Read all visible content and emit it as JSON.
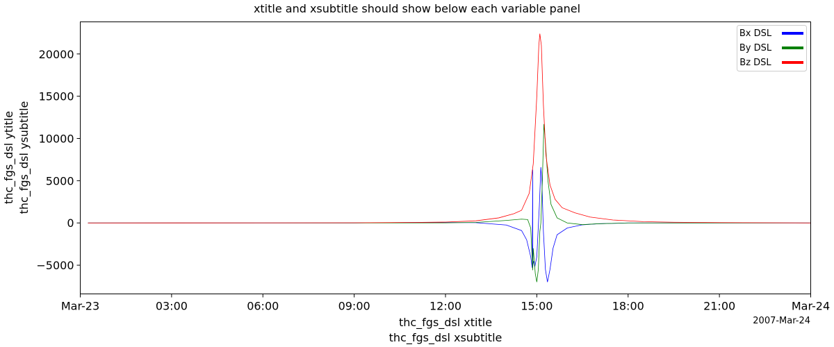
{
  "chart_data": {
    "type": "line",
    "title": "xtitle and xsubtitle should show below each variable panel",
    "xlabel": "thc_fgs_dsl xtitle",
    "xsublabel": "thc_fgs_dsl xsubtitle",
    "ylabel": "thc_fgs_dsl ytitle",
    "ysublabel": "thc_fgs_dsl ysubtitle",
    "date_label": "2007-Mar-24",
    "xlim": [
      "2007-03-23 00:00",
      "2007-03-24 00:00"
    ],
    "ylim": [
      -8400,
      23800
    ],
    "grid": false,
    "legend_position": "top-right",
    "x_ticks": [
      {
        "x": "2007-03-23 00:00",
        "label": "Mar-23"
      },
      {
        "x": "2007-03-23 03:00",
        "label": "03:00"
      },
      {
        "x": "2007-03-23 06:00",
        "label": "06:00"
      },
      {
        "x": "2007-03-23 09:00",
        "label": "09:00"
      },
      {
        "x": "2007-03-23 12:00",
        "label": "12:00"
      },
      {
        "x": "2007-03-23 15:00",
        "label": "15:00"
      },
      {
        "x": "2007-03-23 18:00",
        "label": "18:00"
      },
      {
        "x": "2007-03-23 21:00",
        "label": "21:00"
      },
      {
        "x": "2007-03-24 00:00",
        "label": "Mar-24"
      }
    ],
    "y_ticks": [
      {
        "y": -5000,
        "label": "−5000"
      },
      {
        "y": 0,
        "label": "0"
      },
      {
        "y": 5000,
        "label": "5000"
      },
      {
        "y": 10000,
        "label": "10000"
      },
      {
        "y": 15000,
        "label": "15000"
      },
      {
        "y": 20000,
        "label": "20000"
      }
    ],
    "series": [
      {
        "name": "Bx DSL",
        "color": "#0000ff",
        "points": [
          [
            "2007-03-23 00:15",
            0
          ],
          [
            "2007-03-23 09:00",
            0
          ],
          [
            "2007-03-23 11:00",
            50
          ],
          [
            "2007-03-23 12:00",
            50
          ],
          [
            "2007-03-23 13:00",
            30
          ],
          [
            "2007-03-23 14:00",
            -250
          ],
          [
            "2007-03-23 14:30",
            -900
          ],
          [
            "2007-03-23 14:40",
            -2000
          ],
          [
            "2007-03-23 14:48",
            -4000
          ],
          [
            "2007-03-23 14:51",
            -5300
          ],
          [
            "2007-03-23 14:52",
            6300
          ],
          [
            "2007-03-23 14:52",
            -5000
          ],
          [
            "2007-03-23 14:54",
            -4500
          ],
          [
            "2007-03-23 14:56",
            -5200
          ],
          [
            "2007-03-23 15:00",
            -4000
          ],
          [
            "2007-03-23 15:05",
            2000
          ],
          [
            "2007-03-23 15:08",
            6600
          ],
          [
            "2007-03-23 15:10",
            5000
          ],
          [
            "2007-03-23 15:13",
            -1000
          ],
          [
            "2007-03-23 15:17",
            -5500
          ],
          [
            "2007-03-23 15:21",
            -7000
          ],
          [
            "2007-03-23 15:26",
            -5500
          ],
          [
            "2007-03-23 15:32",
            -3000
          ],
          [
            "2007-03-23 15:40",
            -1400
          ],
          [
            "2007-03-23 16:00",
            -600
          ],
          [
            "2007-03-23 16:30",
            -220
          ],
          [
            "2007-03-23 17:00",
            -100
          ],
          [
            "2007-03-23 18:00",
            0
          ],
          [
            "2007-03-24 00:00",
            0
          ]
        ]
      },
      {
        "name": "By DSL",
        "color": "#008000",
        "points": [
          [
            "2007-03-23 00:15",
            0
          ],
          [
            "2007-03-23 09:00",
            0
          ],
          [
            "2007-03-23 12:00",
            10
          ],
          [
            "2007-03-23 13:00",
            60
          ],
          [
            "2007-03-23 14:00",
            300
          ],
          [
            "2007-03-23 14:30",
            450
          ],
          [
            "2007-03-23 14:42",
            400
          ],
          [
            "2007-03-23 14:48",
            -600
          ],
          [
            "2007-03-23 14:52",
            -5600
          ],
          [
            "2007-03-23 14:53",
            -3000
          ],
          [
            "2007-03-23 14:57",
            -6000
          ],
          [
            "2007-03-23 15:00",
            -7000
          ],
          [
            "2007-03-23 15:03",
            -5500
          ],
          [
            "2007-03-23 15:06",
            -1000
          ],
          [
            "2007-03-23 15:08",
            0
          ],
          [
            "2007-03-23 15:11",
            5000
          ],
          [
            "2007-03-23 15:14",
            11700
          ],
          [
            "2007-03-23 15:17",
            9500
          ],
          [
            "2007-03-23 15:22",
            5000
          ],
          [
            "2007-03-23 15:28",
            2200
          ],
          [
            "2007-03-23 15:40",
            600
          ],
          [
            "2007-03-23 16:00",
            0
          ],
          [
            "2007-03-23 16:30",
            -200
          ],
          [
            "2007-03-23 17:00",
            -100
          ],
          [
            "2007-03-23 18:00",
            0
          ],
          [
            "2007-03-24 00:00",
            0
          ]
        ]
      },
      {
        "name": "Bz DSL",
        "color": "#ff0000",
        "points": [
          [
            "2007-03-23 00:15",
            0
          ],
          [
            "2007-03-23 06:00",
            10
          ],
          [
            "2007-03-23 09:00",
            20
          ],
          [
            "2007-03-23 11:00",
            60
          ],
          [
            "2007-03-23 12:00",
            100
          ],
          [
            "2007-03-23 13:00",
            250
          ],
          [
            "2007-03-23 13:45",
            600
          ],
          [
            "2007-03-23 14:15",
            1100
          ],
          [
            "2007-03-23 14:30",
            1500
          ],
          [
            "2007-03-23 14:45",
            3500
          ],
          [
            "2007-03-23 14:53",
            7000
          ],
          [
            "2007-03-23 15:00",
            15000
          ],
          [
            "2007-03-23 15:04",
            21000
          ],
          [
            "2007-03-23 15:06",
            22400
          ],
          [
            "2007-03-23 15:09",
            21000
          ],
          [
            "2007-03-23 15:13",
            14000
          ],
          [
            "2007-03-23 15:18",
            8000
          ],
          [
            "2007-03-23 15:26",
            4500
          ],
          [
            "2007-03-23 15:36",
            2800
          ],
          [
            "2007-03-23 15:50",
            1800
          ],
          [
            "2007-03-23 16:15",
            1200
          ],
          [
            "2007-03-23 16:45",
            700
          ],
          [
            "2007-03-23 17:30",
            350
          ],
          [
            "2007-03-23 18:30",
            150
          ],
          [
            "2007-03-23 19:30",
            80
          ],
          [
            "2007-03-23 21:00",
            40
          ],
          [
            "2007-03-24 00:00",
            0
          ]
        ]
      }
    ]
  }
}
